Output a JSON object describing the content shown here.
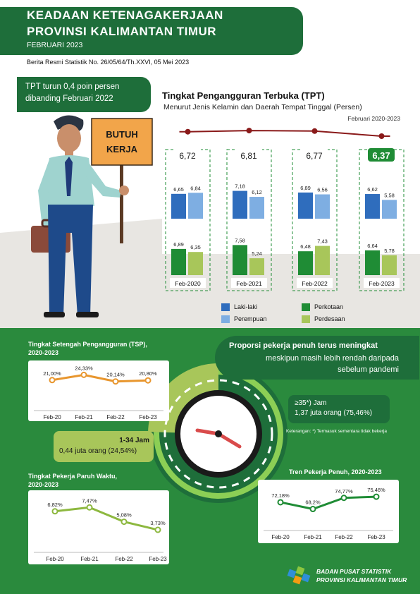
{
  "header": {
    "title_line1": "KEADAAN KETENAGAKERJAAN",
    "title_line2": "PROVINSI KALIMANTAN TIMUR",
    "period": "FEBRUARI 2023",
    "brs": "Berita Resmi Statistik No. 26/05/64/Th.XXVI, 05 Mei 2023"
  },
  "banner": {
    "line1": "TPT turun 0,4 poin persen",
    "line2": "dibanding Februari 2022"
  },
  "sign": {
    "line1": "BUTUH",
    "line2": "KERJA"
  },
  "tpt": {
    "title": "Tingkat Pengangguran Terbuka (TPT)",
    "subtitle": "Menurut Jenis Kelamin dan Daerah Tempat Tinggal (Persen)",
    "period": "Februari 2020-2023",
    "legend": {
      "male": "Laki-laki",
      "female": "Perempuan",
      "urban": "Perkotaan",
      "rural": "Perdesaan"
    },
    "colors": {
      "male": "#2f6dbd",
      "female": "#7eaee2",
      "urban": "#1f8c35",
      "rural": "#a8c65a",
      "line": "#8a1a1a",
      "accent": "#1f8c35"
    }
  },
  "proportion": {
    "line1": "Proporsi pekerja penuh terus meningkat",
    "line2": "meskipun masih lebih rendah daripada",
    "line3": "sebelum pandemi",
    "full_label": "≥35*) Jam",
    "full_value": "1,37 juta orang (75,46%)",
    "part_label": "1-34 Jam",
    "part_value": "0,44 juta orang (24,54%)",
    "note": "Keterangan: *) Termasuk sementara tidak bekerja",
    "share_full": 0.7546
  },
  "tsp_title": {
    "line1": "Tingkat Setengah Pengangguran (TSP),",
    "line2": "2020-2023"
  },
  "paruh_title": {
    "line1": "Tingkat Pekerja Paruh Waktu,",
    "line2": "2020-2023"
  },
  "penuh_title": "Tren Pekerja Penuh, 2020-2023",
  "footer": {
    "line1": "BADAN PUSAT STATISTIK",
    "line2": "PROVINSI KALIMANTAN TIMUR"
  },
  "chart_data": [
    {
      "type": "bar",
      "title": "Tingkat Pengangguran Terbuka (TPT)",
      "categories": [
        "Feb-2020",
        "Feb-2021",
        "Feb-2022",
        "Feb-2023"
      ],
      "total": [
        6.72,
        6.81,
        6.77,
        6.37
      ],
      "total_labels": [
        "6,72",
        "6,81",
        "6,77",
        "6,37"
      ],
      "series": [
        {
          "name": "Laki-laki",
          "values": [
            6.65,
            7.18,
            6.89,
            6.62
          ],
          "labels": [
            "6,65",
            "7,18",
            "6,89",
            "6,62"
          ]
        },
        {
          "name": "Perempuan",
          "values": [
            6.84,
            6.12,
            6.56,
            5.58
          ],
          "labels": [
            "6,84",
            "6,12",
            "6,56",
            "5,58"
          ]
        },
        {
          "name": "Perkotaan",
          "values": [
            6.89,
            7.58,
            6.48,
            6.64
          ],
          "labels": [
            "6,89",
            "7,58",
            "6,48",
            "6,64"
          ]
        },
        {
          "name": "Perdesaan",
          "values": [
            6.35,
            5.24,
            7.43,
            5.78
          ],
          "labels": [
            "6,35",
            "5,24",
            "7,43",
            "5,78"
          ]
        }
      ]
    },
    {
      "type": "line",
      "title": "Tingkat Setengah Pengangguran (TSP), 2020-2023",
      "categories": [
        "Feb-20",
        "Feb-21",
        "Feb-22",
        "Feb-23"
      ],
      "values": [
        21.0,
        24.33,
        20.14,
        20.8
      ],
      "labels": [
        "21,00%",
        "24,33%",
        "20,14%",
        "20,80%"
      ],
      "color": "#e8962e"
    },
    {
      "type": "line",
      "title": "Tingkat Pekerja Paruh Waktu, 2020-2023",
      "categories": [
        "Feb-20",
        "Feb-21",
        "Feb-22",
        "Feb-23"
      ],
      "values": [
        6.82,
        7.47,
        5.08,
        3.73
      ],
      "labels": [
        "6,82%",
        "7,47%",
        "5,08%",
        "3,73%"
      ],
      "color": "#8db83f"
    },
    {
      "type": "line",
      "title": "Tren Pekerja Penuh, 2020-2023",
      "categories": [
        "Feb-20",
        "Feb-21",
        "Feb-22",
        "Feb-23"
      ],
      "values": [
        72.18,
        68.2,
        74.77,
        75.46
      ],
      "labels": [
        "72,18%",
        "68,2%",
        "74,77%",
        "75,46%"
      ],
      "color": "#1f8c35"
    }
  ]
}
